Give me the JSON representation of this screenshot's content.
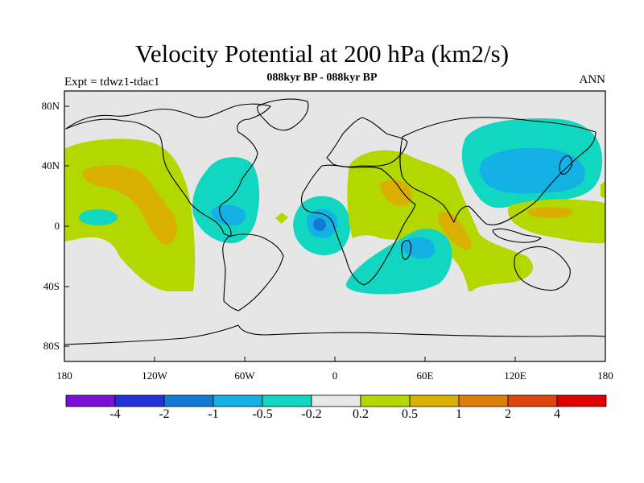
{
  "title": "Velocity Potential at 200 hPa (km2/s)",
  "subtitle": "088kyr BP - 088kyr BP",
  "left_note": "Expt = tdwz1-tdac1",
  "right_note": "ANN",
  "map": {
    "projection": "cylindrical equidistant",
    "lon_range": [
      -180,
      180
    ],
    "lat_range": [
      -90,
      90
    ],
    "ocean_fill": "#e6e6e6",
    "coastline_color": "#000000",
    "y_tick_labels": [
      "80N",
      "40N",
      "0",
      "40S",
      "80S"
    ],
    "x_tick_labels": [
      "180",
      "120W",
      "60W",
      "0",
      "60E",
      "120E",
      "180"
    ]
  },
  "colorbar": {
    "labels": [
      "-4",
      "-2",
      "-1",
      "-0.5",
      "-0.2",
      "0.2",
      "0.5",
      "1",
      "2",
      "4"
    ],
    "colors": [
      "#7a10d8",
      "#2232d6",
      "#0f7bd6",
      "#13b1e4",
      "#12d7c0",
      "#e8e8e8",
      "#b2d800",
      "#dab000",
      "#de7d07",
      "#e0440d",
      "#e00000"
    ]
  },
  "contour_fill": {
    "levels_km2_per_s": [
      -4,
      -2,
      -1,
      -0.5,
      -0.2,
      0.2,
      0.5,
      1,
      2,
      4
    ],
    "positive_regions": [
      "North Pacific / western North America",
      "Southeast Pacific",
      "Arabia / Indian Ocean",
      "South Indian Ocean",
      "Western Pacific (south of equator)"
    ],
    "negative_regions": [
      "Caribbean / Central America",
      "Gulf of Guinea",
      "Southwest Indian Ocean",
      "East Asia / Northwest Pacific"
    ]
  }
}
